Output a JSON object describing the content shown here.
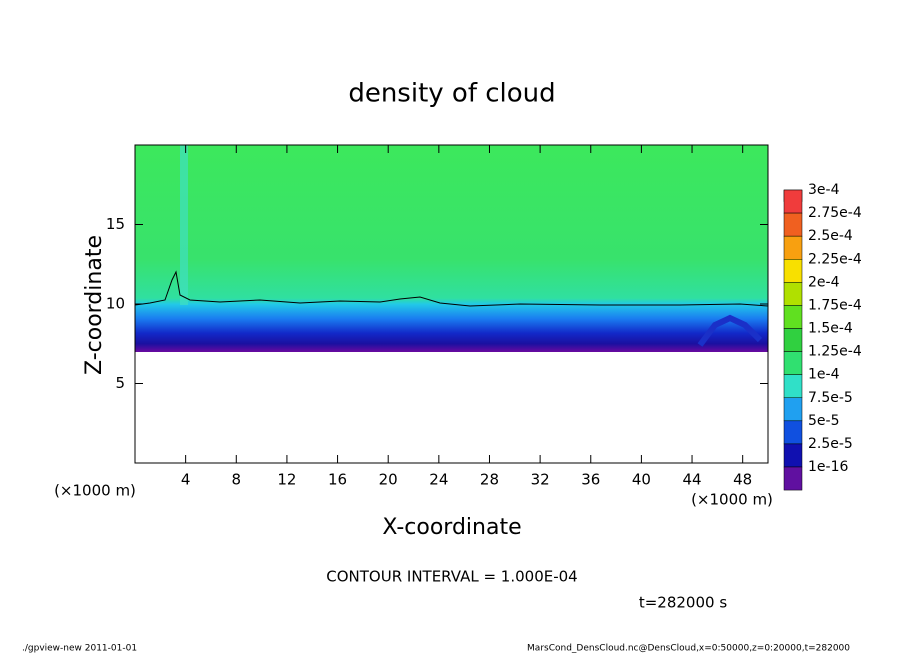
{
  "chart_data": {
    "type": "contour",
    "title": "density of cloud",
    "x_label": "X-coordinate",
    "y_label": "Z-coordinate",
    "x_unit_labels": [
      "(×1000 m)",
      "(×1000 m)"
    ],
    "xlim": [
      0,
      50
    ],
    "xticks": [
      4,
      8,
      12,
      16,
      20,
      24,
      28,
      32,
      36,
      40,
      44,
      48
    ],
    "ylim": [
      0,
      20
    ],
    "yticks": [
      5,
      10,
      15
    ],
    "colorbar": {
      "ticks": [
        {
          "value": 0.0003,
          "label": "3e-4"
        },
        {
          "value": 0.000275,
          "label": "2.75e-4"
        },
        {
          "value": 0.00025,
          "label": "2.5e-4"
        },
        {
          "value": 0.000225,
          "label": "2.25e-4"
        },
        {
          "value": 0.0002,
          "label": "2e-4"
        },
        {
          "value": 0.000175,
          "label": "1.75e-4"
        },
        {
          "value": 0.00015,
          "label": "1.5e-4"
        },
        {
          "value": 0.000125,
          "label": "1.25e-4"
        },
        {
          "value": 0.0001,
          "label": "1e-4"
        },
        {
          "value": 7.5e-05,
          "label": "7.5e-5"
        },
        {
          "value": 5e-05,
          "label": "5e-5"
        },
        {
          "value": 2.5e-05,
          "label": "2.5e-5"
        },
        {
          "value": 1e-16,
          "label": "1e-16"
        }
      ],
      "colors": [
        "#f88890",
        "#f03c3c",
        "#f06020",
        "#f8a010",
        "#f8e000",
        "#b0e000",
        "#60e020",
        "#30d040",
        "#30e070",
        "#30e0c8",
        "#20a0f0",
        "#1050e0",
        "#1010b0",
        "#6010a0"
      ]
    },
    "annotations": [
      "CONTOUR INTERVAL = 1.000E-04",
      "t=282000 s"
    ],
    "footer_left": "./gpview-new  2011-01-01",
    "footer_right": "MarsCond_DensCloud.nc@DensCloud,x=0:50000,z=0:20000,t=282000"
  }
}
